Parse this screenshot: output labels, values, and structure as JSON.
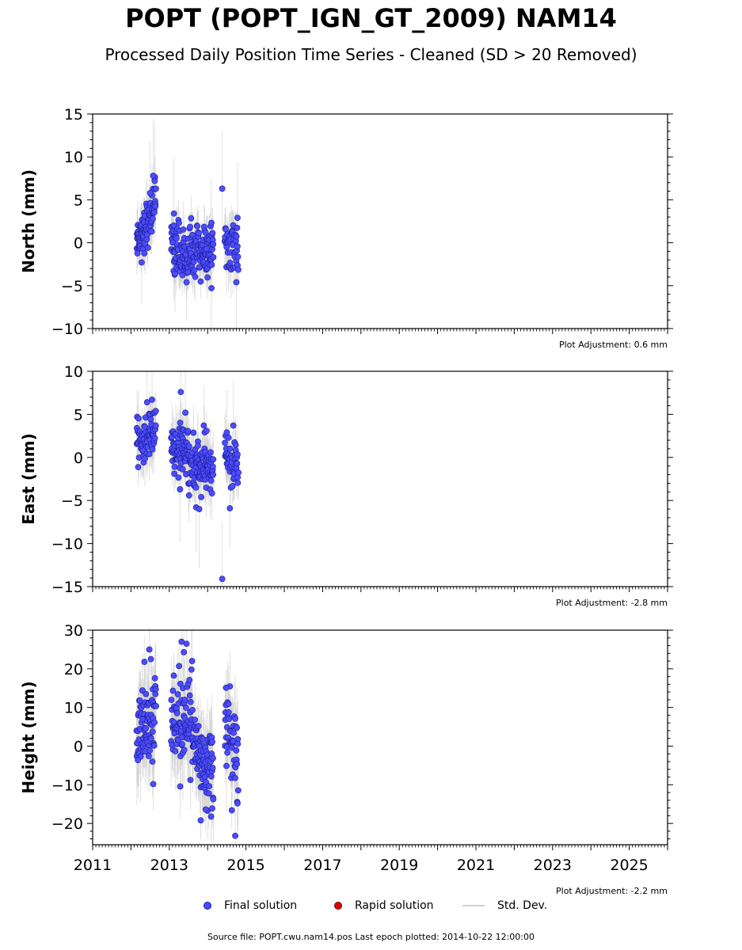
{
  "title": "POPT (POPT_IGN_GT_2009) NAM14",
  "subtitle": "Processed Daily Position Time Series - Cleaned (SD > 20 Removed)",
  "colors": {
    "final": "#4c4cff",
    "final_edge": "#1a1a8c",
    "rapid": "#e00000",
    "stddev": "#c8c8c8"
  },
  "legend": {
    "final": "Final solution",
    "rapid": "Rapid solution",
    "stddev": "Std. Dev."
  },
  "footer": "Source file: POPT.cwu.nam14.pos  Last epoch plotted: 2014-10-22 12:00:00",
  "chart_data": [
    {
      "type": "scatter",
      "ylabel": "North (mm)",
      "xlim": [
        2011,
        2026
      ],
      "ylim": [
        -10,
        15
      ],
      "yticks": [
        -10,
        -5,
        0,
        5,
        10,
        15
      ],
      "xticks": [
        2011,
        2013,
        2015,
        2017,
        2019,
        2021,
        2023,
        2025
      ],
      "xtick_labels_shown": false,
      "adjustment": "Plot Adjustment: 0.6 mm",
      "clusters": [
        {
          "start": 2012.15,
          "end": 2012.35,
          "ystart": 0.5,
          "yend": 1.5,
          "spread": 2.5,
          "err": 2.2,
          "n": 40
        },
        {
          "start": 2012.35,
          "end": 2012.65,
          "ystart": 1.5,
          "yend": 5.0,
          "spread": 3.0,
          "err": 2.5,
          "n": 50
        },
        {
          "start": 2013.05,
          "end": 2013.5,
          "ystart": 0.0,
          "yend": -2.0,
          "spread": 3.0,
          "err": 2.3,
          "n": 70
        },
        {
          "start": 2013.5,
          "end": 2014.15,
          "ystart": -1.0,
          "yend": -1.0,
          "spread": 3.2,
          "err": 2.3,
          "n": 100
        },
        {
          "start": 2014.45,
          "end": 2014.8,
          "ystart": 0.0,
          "yend": -1.0,
          "spread": 2.8,
          "err": 2.5,
          "n": 45
        }
      ],
      "points": [
        {
          "x": 2012.58,
          "y": 7.8
        },
        {
          "x": 2012.62,
          "y": 7.2
        },
        {
          "x": 2012.5,
          "y": 5.8
        },
        {
          "x": 2012.28,
          "y": -2.3
        },
        {
          "x": 2013.12,
          "y": 3.4
        },
        {
          "x": 2013.15,
          "y": -3.6
        },
        {
          "x": 2013.45,
          "y": -4.6
        },
        {
          "x": 2014.1,
          "y": -5.3
        },
        {
          "x": 2014.38,
          "y": 6.3
        },
        {
          "x": 2014.75,
          "y": -4.6
        },
        {
          "x": 2014.78,
          "y": 2.9
        },
        {
          "x": 2014.1,
          "y": 2.3
        }
      ]
    },
    {
      "type": "scatter",
      "ylabel": "East (mm)",
      "xlim": [
        2011,
        2026
      ],
      "ylim": [
        -15,
        10
      ],
      "yticks": [
        -15,
        -10,
        -5,
        0,
        5,
        10
      ],
      "xticks": [
        2011,
        2013,
        2015,
        2017,
        2019,
        2021,
        2023,
        2025
      ],
      "xtick_labels_shown": false,
      "adjustment": "Plot Adjustment: -2.8 mm",
      "clusters": [
        {
          "start": 2012.15,
          "end": 2012.65,
          "ystart": 1.0,
          "yend": 3.5,
          "spread": 3.0,
          "err": 2.5,
          "n": 70
        },
        {
          "start": 2013.05,
          "end": 2013.5,
          "ystart": 0.5,
          "yend": 1.0,
          "spread": 3.5,
          "err": 2.5,
          "n": 70
        },
        {
          "start": 2013.5,
          "end": 2014.15,
          "ystart": -1.0,
          "yend": -1.5,
          "spread": 3.5,
          "err": 2.5,
          "n": 100
        },
        {
          "start": 2014.45,
          "end": 2014.8,
          "ystart": 0.0,
          "yend": -1.5,
          "spread": 3.0,
          "err": 2.5,
          "n": 45
        }
      ],
      "points": [
        {
          "x": 2013.3,
          "y": 7.6
        },
        {
          "x": 2012.55,
          "y": 6.7
        },
        {
          "x": 2012.42,
          "y": 6.4
        },
        {
          "x": 2013.42,
          "y": 5.2
        },
        {
          "x": 2013.9,
          "y": 3.7
        },
        {
          "x": 2013.28,
          "y": -3.7
        },
        {
          "x": 2013.7,
          "y": -5.8
        },
        {
          "x": 2013.78,
          "y": -6.0
        },
        {
          "x": 2014.58,
          "y": -5.9
        },
        {
          "x": 2014.38,
          "y": -14.1
        },
        {
          "x": 2014.67,
          "y": 3.7
        },
        {
          "x": 2014.5,
          "y": 2.9
        }
      ]
    },
    {
      "type": "scatter",
      "ylabel": "Height (mm)",
      "xlim": [
        2011,
        2026
      ],
      "ylim": [
        -25.5,
        30
      ],
      "yticks": [
        -20,
        -10,
        0,
        10,
        20,
        30
      ],
      "xticks": [
        2011,
        2013,
        2015,
        2017,
        2019,
        2021,
        2023,
        2025
      ],
      "xtick_labels_shown": true,
      "adjustment": "Plot Adjustment: -2.2 mm",
      "clusters": [
        {
          "start": 2012.15,
          "end": 2012.65,
          "ystart": 5.0,
          "yend": 8.0,
          "spread": 12.0,
          "err": 9.0,
          "n": 80
        },
        {
          "start": 2013.05,
          "end": 2013.6,
          "ystart": 6.0,
          "yend": 9.0,
          "spread": 14.0,
          "err": 9.0,
          "n": 80
        },
        {
          "start": 2013.6,
          "end": 2014.15,
          "ystart": -2.0,
          "yend": -4.0,
          "spread": 13.0,
          "err": 8.0,
          "n": 90
        },
        {
          "start": 2014.45,
          "end": 2014.8,
          "ystart": 5.0,
          "yend": -2.0,
          "spread": 12.0,
          "err": 8.5,
          "n": 45
        }
      ],
      "points": [
        {
          "x": 2012.48,
          "y": 25.0
        },
        {
          "x": 2012.52,
          "y": 22.5
        },
        {
          "x": 2012.35,
          "y": 21.8
        },
        {
          "x": 2012.58,
          "y": -9.8
        },
        {
          "x": 2012.18,
          "y": -3.6
        },
        {
          "x": 2013.32,
          "y": 27.0
        },
        {
          "x": 2013.45,
          "y": 26.5
        },
        {
          "x": 2013.38,
          "y": 24.3
        },
        {
          "x": 2013.82,
          "y": -19.2
        },
        {
          "x": 2013.95,
          "y": -16.4
        },
        {
          "x": 2014.12,
          "y": -16.1
        },
        {
          "x": 2014.63,
          "y": -16.6
        },
        {
          "x": 2014.72,
          "y": -23.2
        },
        {
          "x": 2014.78,
          "y": -14.8
        },
        {
          "x": 2014.48,
          "y": 15.1
        }
      ]
    }
  ]
}
